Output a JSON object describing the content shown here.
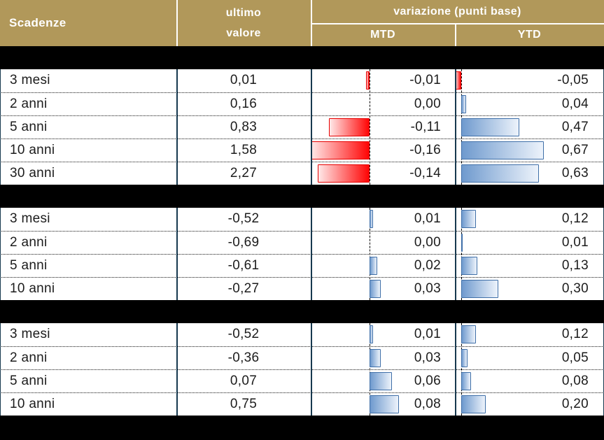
{
  "header": {
    "scadenze": "Scadenze",
    "ultimo": "ultimo",
    "valore": "valore",
    "variazione": "variazione (punti base)",
    "mtd": "MTD",
    "ytd": "YTD"
  },
  "colors": {
    "header_gold": "#B1985A",
    "band_black": "#000000",
    "divider_teal": "#17394F",
    "negative_bar_red": "#FF0000",
    "negative_bar_border": "#E60000",
    "positive_bar_blue": "#6F9ACE",
    "positive_bar_border": "#3F6FA8"
  },
  "sections": [
    {
      "rows": [
        {
          "label": "3 mesi",
          "last": "0,01",
          "mtd": "-0,01",
          "mtd_num": -0.01,
          "ytd": "-0,05",
          "ytd_num": -0.05
        },
        {
          "label": "2 anni",
          "last": "0,16",
          "mtd": "0,00",
          "mtd_num": 0.0,
          "ytd": "0,04",
          "ytd_num": 0.04
        },
        {
          "label": "5 anni",
          "last": "0,83",
          "mtd": "-0,11",
          "mtd_num": -0.11,
          "ytd": "0,47",
          "ytd_num": 0.47
        },
        {
          "label": "10 anni",
          "last": "1,58",
          "mtd": "-0,16",
          "mtd_num": -0.16,
          "ytd": "0,67",
          "ytd_num": 0.67
        },
        {
          "label": "30 anni",
          "last": "2,27",
          "mtd": "-0,14",
          "mtd_num": -0.14,
          "ytd": "0,63",
          "ytd_num": 0.63
        }
      ]
    },
    {
      "rows": [
        {
          "label": "3 mesi",
          "last": "-0,52",
          "mtd": "0,01",
          "mtd_num": 0.01,
          "ytd": "0,12",
          "ytd_num": 0.12
        },
        {
          "label": "2 anni",
          "last": "-0,69",
          "mtd": "0,00",
          "mtd_num": 0.0,
          "ytd": "0,01",
          "ytd_num": 0.01
        },
        {
          "label": "5 anni",
          "last": "-0,61",
          "mtd": "0,02",
          "mtd_num": 0.02,
          "ytd": "0,13",
          "ytd_num": 0.13
        },
        {
          "label": "10 anni",
          "last": "-0,27",
          "mtd": "0,03",
          "mtd_num": 0.03,
          "ytd": "0,30",
          "ytd_num": 0.3
        }
      ]
    },
    {
      "rows": [
        {
          "label": "3 mesi",
          "last": "-0,52",
          "mtd": "0,01",
          "mtd_num": 0.01,
          "ytd": "0,12",
          "ytd_num": 0.12
        },
        {
          "label": "2 anni",
          "last": "-0,36",
          "mtd": "0,03",
          "mtd_num": 0.03,
          "ytd": "0,05",
          "ytd_num": 0.05
        },
        {
          "label": "5 anni",
          "last": "0,07",
          "mtd": "0,06",
          "mtd_num": 0.06,
          "ytd": "0,08",
          "ytd_num": 0.08
        },
        {
          "label": "10 anni",
          "last": "0,75",
          "mtd": "0,08",
          "mtd_num": 0.08,
          "ytd": "0,20",
          "ytd_num": 0.2
        }
      ]
    }
  ],
  "chart_data": {
    "type": "table",
    "title": "variazione (punti base)",
    "columns": [
      "Scadenze",
      "ultimo valore",
      "MTD variazione (punti base)",
      "YTD variazione (punti base)"
    ],
    "groups": [
      [
        [
          "3 mesi",
          0.01,
          -0.01,
          -0.05
        ],
        [
          "2 anni",
          0.16,
          0.0,
          0.04
        ],
        [
          "5 anni",
          0.83,
          -0.11,
          0.47
        ],
        [
          "10 anni",
          1.58,
          -0.16,
          0.67
        ],
        [
          "30 anni",
          2.27,
          -0.14,
          0.63
        ]
      ],
      [
        [
          "3 mesi",
          -0.52,
          0.01,
          0.12
        ],
        [
          "2 anni",
          -0.69,
          0.0,
          0.01
        ],
        [
          "5 anni",
          -0.61,
          0.02,
          0.13
        ],
        [
          "10 anni",
          -0.27,
          0.03,
          0.3
        ]
      ],
      [
        [
          "3 mesi",
          -0.52,
          0.01,
          0.12
        ],
        [
          "2 anni",
          -0.36,
          0.03,
          0.05
        ],
        [
          "5 anni",
          0.07,
          0.06,
          0.08
        ],
        [
          "10 anni",
          0.75,
          0.08,
          0.2
        ]
      ]
    ],
    "bar_encoding": {
      "negative_bars": "red gradient, extend left of dashed zero axis",
      "positive_bars": "blue gradient, extend right of dashed zero axis",
      "mtd_axis_range": [
        -0.16,
        0.23
      ],
      "ytd_axis_range": [
        -0.05,
        1.16
      ]
    },
    "notes": "three row-groups separated by solid black bands with no visible text"
  }
}
